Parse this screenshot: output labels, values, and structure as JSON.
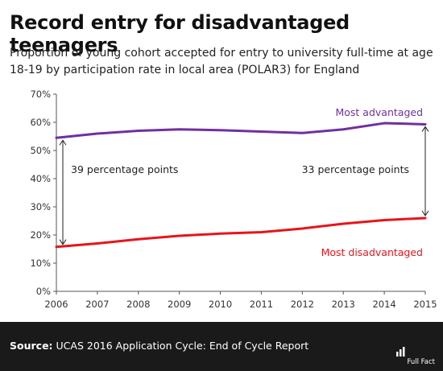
{
  "header": {
    "title": "Record entry for disadvantaged teenagers",
    "subtitle": "Proportion of young cohort accepted for entry to university full-time at age 18-19 by participation rate in local area (POLAR3) for England"
  },
  "footer": {
    "source_label": "Source:",
    "source_text": "UCAS 2016 Application Cycle: End of Cycle Report",
    "logo_text": "Full Fact"
  },
  "colors": {
    "advantaged": "#7030a0",
    "disadvantaged": "#e8141b",
    "axis": "#555555",
    "footer_bg": "#1a1a1a"
  },
  "chart_data": {
    "type": "line",
    "title": "Record entry for disadvantaged teenagers",
    "x": [
      2006,
      2007,
      2008,
      2009,
      2010,
      2011,
      2012,
      2013,
      2014,
      2015
    ],
    "x_ticks": [
      "2006",
      "2007",
      "2008",
      "2009",
      "2010",
      "2011",
      "2012",
      "2013",
      "2014",
      "2015"
    ],
    "y_ticks": [
      "0%",
      "10%",
      "20%",
      "30%",
      "40%",
      "50%",
      "60%",
      "70%"
    ],
    "ylim": [
      0,
      70
    ],
    "grid": false,
    "series": [
      {
        "name": "Most advantaged",
        "color": "#7030a0",
        "values": [
          54.5,
          56.0,
          57.0,
          57.5,
          57.2,
          56.7,
          56.2,
          57.5,
          59.7,
          59.3
        ]
      },
      {
        "name": "Most disadvantaged",
        "color": "#e8141b",
        "values": [
          15.8,
          17.0,
          18.5,
          19.7,
          20.5,
          21.0,
          22.3,
          24.0,
          25.3,
          26.0
        ]
      }
    ],
    "annotations": [
      {
        "text": "39 percentage points",
        "x": 2006,
        "from": 15.8,
        "to": 54.5
      },
      {
        "text": "33 percentage points",
        "x": 2015,
        "from": 26.0,
        "to": 59.3
      }
    ]
  }
}
